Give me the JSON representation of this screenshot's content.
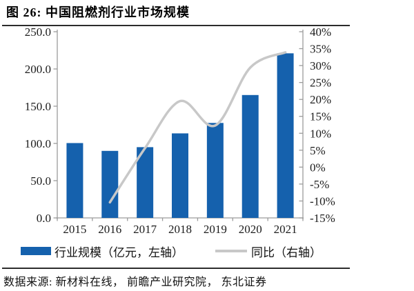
{
  "figure": {
    "title": "图  26:  中国阻燃剂行业市场规模",
    "source_note": "数据来源:  新材料在线，  前瞻产业研究院，  东北证券"
  },
  "legend": {
    "items": [
      {
        "label": "行业规模（亿元，左轴）",
        "type": "bar",
        "color": "#1561AD"
      },
      {
        "label": "同比（右轴）",
        "type": "line",
        "color": "#C8C8C8"
      }
    ]
  },
  "colors": {
    "bar": "#1561AD",
    "line": "#C8C8C8",
    "axis": "#9b9b9b",
    "text": "#1c1c1c",
    "rule": "#2b2b2b"
  },
  "chart_data": {
    "type": "bar",
    "title": "中国阻燃剂行业市场规模",
    "categories": [
      "2015",
      "2016",
      "2017",
      "2018",
      "2019",
      "2020",
      "2021"
    ],
    "series": [
      {
        "name": "行业规模（亿元，左轴）",
        "type": "bar",
        "axis": "left",
        "color": "#1561AD",
        "values": [
          100.5,
          90.0,
          95.0,
          113.5,
          127.5,
          165.0,
          221.0
        ]
      },
      {
        "name": "同比（右轴）",
        "type": "line",
        "axis": "right",
        "color": "#C8C8C8",
        "values": [
          null,
          -10.4,
          5.6,
          19.5,
          12.3,
          29.4,
          33.9
        ]
      }
    ],
    "left_axis": {
      "min": 0,
      "max": 250,
      "step": 50,
      "tick_labels": [
        "0.0",
        "50.0",
        "100.0",
        "150.0",
        "200.0",
        "250.0"
      ]
    },
    "right_axis": {
      "min": -15,
      "max": 40,
      "step": 5,
      "tick_labels": [
        "-15%",
        "-10%",
        "-5%",
        "0%",
        "5%",
        "10%",
        "15%",
        "20%",
        "25%",
        "30%",
        "35%",
        "40%"
      ]
    },
    "grid": false,
    "legend_position": "bottom"
  }
}
